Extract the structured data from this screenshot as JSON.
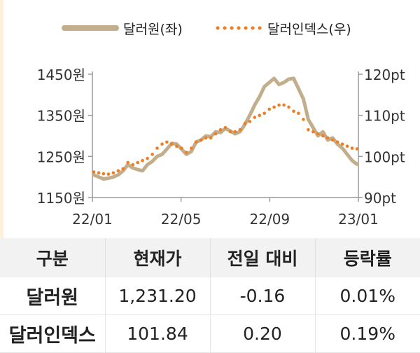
{
  "legend": {
    "series1_label": "달러원(좌)",
    "series2_label": "달러인덱스(우)"
  },
  "chart_data": {
    "type": "line",
    "x_ticks": [
      "22/01",
      "22/05",
      "22/09",
      "23/01"
    ],
    "left_axis": {
      "ticks": [
        "1450원",
        "1350원",
        "1250원",
        "1150원"
      ],
      "range": [
        1150,
        1450
      ]
    },
    "right_axis": {
      "ticks": [
        "120pt",
        "110pt",
        "100pt",
        "90pt"
      ],
      "range": [
        90,
        120
      ]
    },
    "series": [
      {
        "name": "달러원(좌)",
        "axis": "left",
        "color": "#c2ae8c",
        "style": "solid",
        "values": [
          1205,
          1200,
          1195,
          1197,
          1200,
          1205,
          1215,
          1230,
          1222,
          1218,
          1215,
          1230,
          1238,
          1250,
          1255,
          1268,
          1282,
          1280,
          1268,
          1255,
          1262,
          1285,
          1290,
          1300,
          1298,
          1310,
          1308,
          1318,
          1312,
          1305,
          1310,
          1328,
          1350,
          1375,
          1395,
          1420,
          1430,
          1440,
          1425,
          1430,
          1438,
          1440,
          1415,
          1390,
          1340,
          1320,
          1300,
          1310,
          1290,
          1295,
          1280,
          1270,
          1255,
          1240,
          1231
        ]
      },
      {
        "name": "달러인덱스(우)",
        "axis": "right",
        "color": "#ef7d22",
        "style": "dotted",
        "values": [
          96.2,
          96.0,
          95.8,
          95.7,
          96.0,
          96.5,
          97.0,
          98.5,
          98.0,
          98.5,
          99.0,
          99.5,
          100.5,
          102.0,
          103.0,
          103.5,
          103.0,
          102.5,
          102.0,
          101.0,
          102.0,
          103.5,
          104.0,
          104.5,
          104.5,
          105.5,
          106.5,
          107.0,
          106.0,
          106.0,
          106.5,
          108.0,
          108.5,
          109.5,
          110.0,
          110.5,
          111.5,
          112.0,
          112.5,
          112.5,
          112.0,
          111.0,
          110.5,
          109.0,
          106.5,
          106.0,
          105.5,
          105.0,
          104.5,
          104.0,
          103.5,
          103.0,
          102.5,
          102.0,
          101.84
        ]
      }
    ],
    "grid": false
  },
  "table": {
    "headers": [
      "구분",
      "현재가",
      "전일 대비",
      "등락률"
    ],
    "rows": [
      [
        "달러원",
        "1,231.20",
        "-0.16",
        "0.01%"
      ],
      [
        "달러인덱스",
        "101.84",
        "0.20",
        "0.19%"
      ]
    ]
  }
}
